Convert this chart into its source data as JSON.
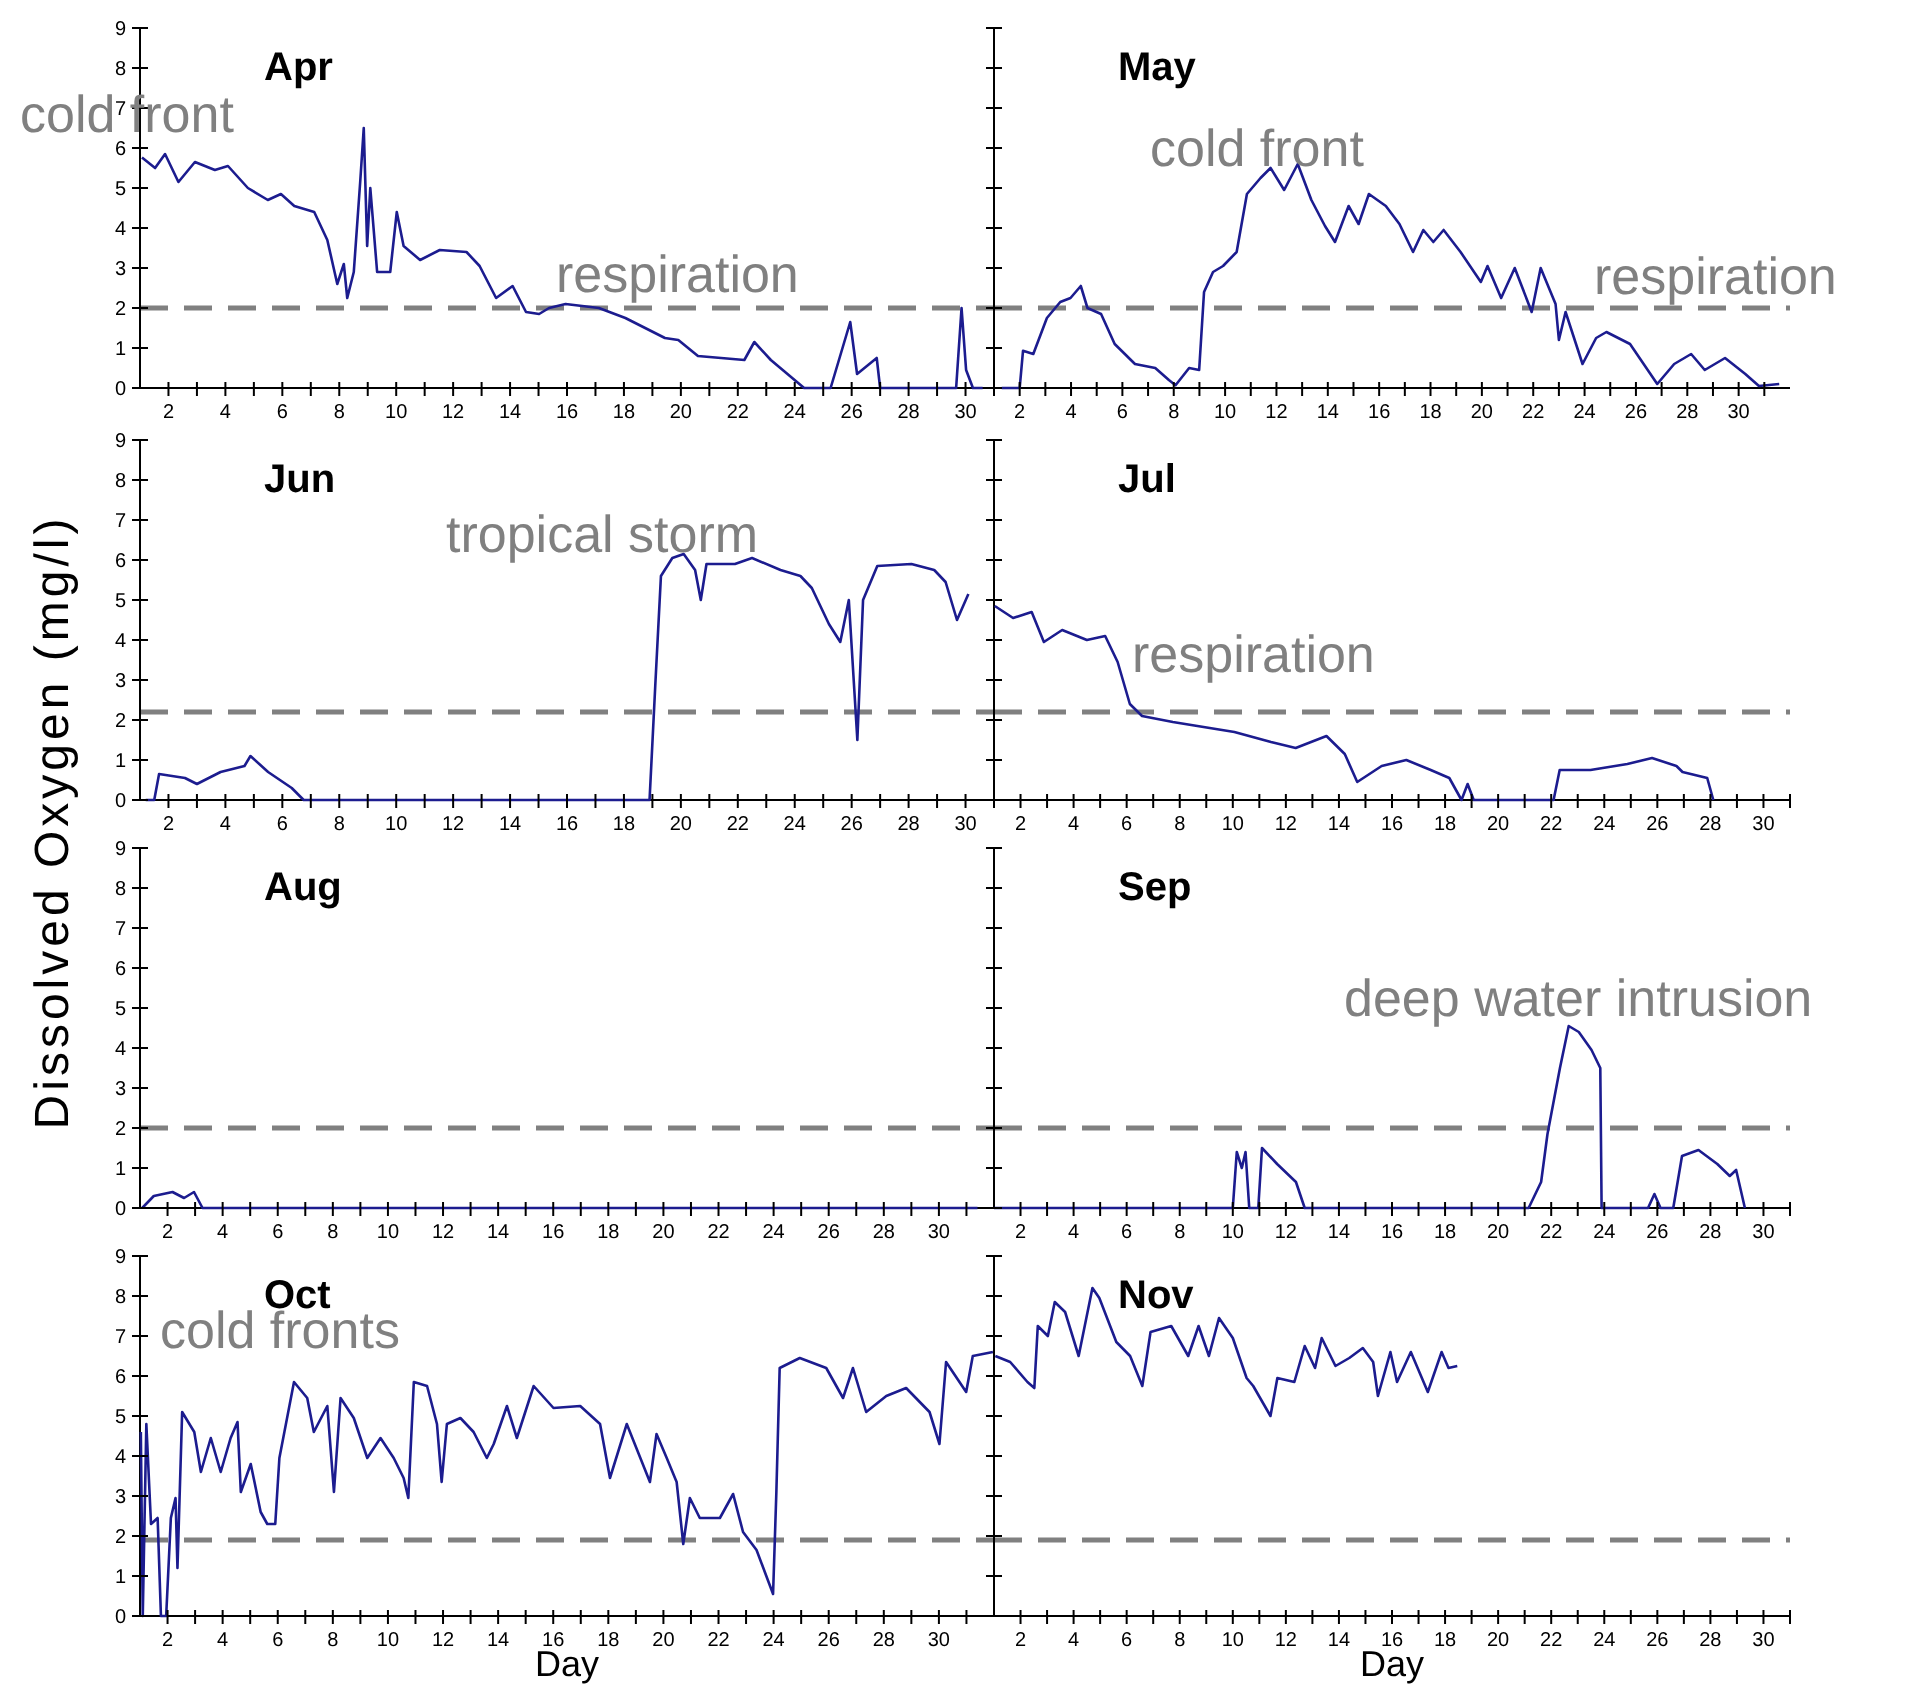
{
  "chart_data": [
    {
      "type": "line",
      "title": "Apr",
      "ylabel": "Dissolved Oxygen (mg/l)",
      "xlim": [
        1,
        31
      ],
      "ylim": [
        0,
        9
      ],
      "yticks": [
        0,
        1,
        2,
        3,
        4,
        5,
        6,
        7,
        8,
        9
      ],
      "xticks": [
        2,
        {
          "value": 3,
          "label": null
        },
        4,
        {
          "value": 5,
          "label": null
        },
        6,
        {
          "value": 7,
          "label": null
        },
        8,
        {
          "value": 9,
          "label": null
        },
        10,
        {
          "value": 11,
          "label": null
        },
        12,
        {
          "value": 13,
          "label": null
        },
        14,
        {
          "value": 15,
          "label": null
        },
        16,
        {
          "value": 17,
          "label": null
        },
        18,
        {
          "value": 19,
          "label": null
        },
        20,
        {
          "value": 21,
          "label": null
        },
        22,
        {
          "value": 23,
          "label": null
        },
        24,
        {
          "value": 25,
          "label": null
        },
        26,
        {
          "value": 27,
          "label": null
        },
        28,
        {
          "value": 29,
          "label": null
        },
        30,
        {
          "value": 31,
          "label": null
        }
      ],
      "ref_lines": [
        {
          "axis": "y",
          "value": 2,
          "color": "#808080",
          "line_style": "dashed"
        }
      ],
      "annotations": [
        "cold front",
        "respiration"
      ],
      "series": [
        {
          "color": "#1c1c8f",
          "x": [
            1.07,
            1.53,
            1.88,
            2.35,
            2.93,
            3.63,
            4.09,
            4.79,
            5.49,
            5.95,
            6.42,
            7.12,
            7.58,
            7.93,
            8.16,
            8.28,
            8.51,
            8.74,
            8.86,
            8.98,
            9.09,
            9.33,
            9.79,
            10.02,
            10.26,
            10.84,
            11.53,
            12.47,
            12.93,
            13.51,
            14.09,
            14.56,
            15.02,
            15.37,
            15.95,
            17.12,
            18.05,
            19.44,
            19.91,
            20.6,
            22.23,
            22.58,
            23.16,
            24.33,
            25.26,
            25.95,
            26.19,
            26.88,
            27.0,
            29.67,
            29.86,
            30.02,
            30.26,
            30.6
          ],
          "values": [
            5.76,
            5.5,
            5.85,
            5.15,
            5.65,
            5.45,
            5.55,
            5.0,
            4.7,
            4.85,
            4.55,
            4.4,
            3.7,
            2.6,
            3.1,
            2.25,
            2.9,
            5.2,
            6.5,
            3.55,
            5.0,
            2.9,
            2.9,
            4.4,
            3.55,
            3.2,
            3.45,
            3.4,
            3.05,
            2.25,
            2.55,
            1.9,
            1.85,
            2.0,
            2.1,
            2.0,
            1.75,
            1.25,
            1.2,
            0.8,
            0.7,
            1.15,
            0.7,
            0,
            0,
            1.65,
            0.35,
            0.75,
            0,
            0,
            2.0,
            0.45,
            0,
            0
          ]
        }
      ]
    },
    {
      "type": "line",
      "title": "May",
      "tick_labels": "x",
      "xlim": [
        1,
        32
      ],
      "ylim": [
        0,
        9
      ],
      "yticks": [
        0,
        1,
        2,
        3,
        4,
        5,
        6,
        7,
        8,
        9
      ],
      "xticks": [
        2,
        {
          "value": 3,
          "label": null
        },
        4,
        {
          "value": 5,
          "label": null
        },
        6,
        {
          "value": 7,
          "label": null
        },
        8,
        {
          "value": 9,
          "label": null
        },
        10,
        {
          "value": 11,
          "label": null
        },
        12,
        {
          "value": 13,
          "label": null
        },
        14,
        {
          "value": 15,
          "label": null
        },
        16,
        {
          "value": 17,
          "label": null
        },
        18,
        {
          "value": 19,
          "label": null
        },
        20,
        {
          "value": 21,
          "label": null
        },
        22,
        {
          "value": 23,
          "label": null
        },
        24,
        {
          "value": 25,
          "label": null
        },
        26,
        {
          "value": 27,
          "label": null
        },
        28,
        {
          "value": 29,
          "label": null
        },
        30,
        {
          "value": 31,
          "label": null
        }
      ],
      "ref_lines": [
        {
          "axis": "y",
          "value": 2,
          "color": "#808080",
          "line_style": "dashed"
        }
      ],
      "annotations": [
        "cold front",
        "respiration"
      ],
      "series": [
        {
          "color": "#1c1c8f",
          "x": [
            1.3,
            2.0,
            2.13,
            2.53,
            3.06,
            3.58,
            3.98,
            4.38,
            4.64,
            5.17,
            5.7,
            6.49,
            7.28,
            7.81,
            8.07,
            8.6,
            8.99,
            9.18,
            9.53,
            9.92,
            10.45,
            10.85,
            11.38,
            11.77,
            12.3,
            12.83,
            13.36,
            13.89,
            14.28,
            14.81,
            15.2,
            15.6,
            16.26,
            16.79,
            17.32,
            17.72,
            18.11,
            18.51,
            19.17,
            19.96,
            20.22,
            20.75,
            21.28,
            21.94,
            22.29,
            22.87,
            23.0,
            23.26,
            23.92,
            24.45,
            24.85,
            25.77,
            26.83,
            27.49,
            28.15,
            28.68,
            29.47,
            30.26,
            30.79,
            31.58
          ],
          "values": [
            0,
            0,
            0.93,
            0.85,
            1.75,
            2.15,
            2.25,
            2.55,
            2.0,
            1.85,
            1.1,
            0.6,
            0.5,
            0.2,
            0.07,
            0.5,
            0.45,
            2.4,
            2.9,
            3.05,
            3.4,
            4.85,
            5.25,
            5.5,
            4.95,
            5.6,
            4.7,
            4.05,
            3.65,
            4.55,
            4.1,
            4.85,
            4.55,
            4.1,
            3.4,
            3.95,
            3.65,
            3.95,
            3.4,
            2.65,
            3.05,
            2.25,
            3.0,
            1.9,
            3.0,
            2.1,
            1.2,
            1.9,
            0.6,
            1.25,
            1.4,
            1.1,
            0.1,
            0.6,
            0.85,
            0.45,
            0.75,
            0.35,
            0.05,
            0.1
          ]
        }
      ]
    },
    {
      "type": "line",
      "title": "Jun",
      "xlim": [
        1,
        31
      ],
      "ylim": [
        0,
        9
      ],
      "yticks": [
        0,
        1,
        2,
        3,
        4,
        5,
        6,
        7,
        8,
        9
      ],
      "xticks": [
        2,
        {
          "value": 3,
          "label": null
        },
        4,
        {
          "value": 5,
          "label": null
        },
        6,
        {
          "value": 7,
          "label": null
        },
        8,
        {
          "value": 9,
          "label": null
        },
        10,
        {
          "value": 11,
          "label": null
        },
        12,
        {
          "value": 13,
          "label": null
        },
        14,
        {
          "value": 15,
          "label": null
        },
        16,
        {
          "value": 17,
          "label": null
        },
        18,
        {
          "value": 19,
          "label": null
        },
        20,
        {
          "value": 21,
          "label": null
        },
        22,
        {
          "value": 23,
          "label": null
        },
        24,
        {
          "value": 25,
          "label": null
        },
        26,
        {
          "value": 27,
          "label": null
        },
        28,
        {
          "value": 29,
          "label": null
        },
        30,
        {
          "value": 31,
          "label": null
        }
      ],
      "ref_lines": [
        {
          "axis": "y",
          "value": 2.2,
          "color": "#808080",
          "line_style": "dashed"
        }
      ],
      "annotations": [
        "tropical storm"
      ],
      "series": [
        {
          "color": "#1c1c8f",
          "x": [
            1.2,
            1.5,
            1.67,
            2.58,
            3.0,
            3.83,
            4.67,
            4.88,
            5.5,
            6.33,
            6.75,
            18.9,
            19.1,
            19.3,
            19.7,
            20.1,
            20.5,
            20.7,
            20.9,
            21.9,
            22.5,
            23.5,
            24.2,
            24.6,
            25.2,
            25.6,
            25.9,
            26.2,
            26.4,
            26.9,
            28.1,
            28.9,
            29.3,
            29.7,
            30.1
          ],
          "values": [
            0,
            0,
            0.65,
            0.55,
            0.4,
            0.7,
            0.85,
            1.1,
            0.7,
            0.3,
            0,
            0,
            2.85,
            5.6,
            6.05,
            6.15,
            5.75,
            5.0,
            5.9,
            5.9,
            6.05,
            5.75,
            5.6,
            5.3,
            4.4,
            3.95,
            5.0,
            1.5,
            5.0,
            5.85,
            5.9,
            5.75,
            5.45,
            4.5,
            5.15
          ]
        }
      ]
    },
    {
      "type": "line",
      "title": "Jul",
      "tick_labels": "x",
      "xlim": [
        1,
        31
      ],
      "ylim": [
        0,
        9
      ],
      "yticks": [
        0,
        1,
        2,
        3,
        4,
        5,
        6,
        7,
        8,
        9
      ],
      "xticks": [
        2,
        {
          "value": 3,
          "label": null
        },
        4,
        {
          "value": 5,
          "label": null
        },
        6,
        {
          "value": 7,
          "label": null
        },
        8,
        {
          "value": 9,
          "label": null
        },
        10,
        {
          "value": 11,
          "label": null
        },
        12,
        {
          "value": 13,
          "label": null
        },
        14,
        {
          "value": 15,
          "label": null
        },
        16,
        {
          "value": 17,
          "label": null
        },
        18,
        {
          "value": 19,
          "label": null
        },
        20,
        {
          "value": 21,
          "label": null
        },
        22,
        {
          "value": 23,
          "label": null
        },
        24,
        {
          "value": 25,
          "label": null
        },
        26,
        {
          "value": 27,
          "label": null
        },
        28,
        {
          "value": 29,
          "label": null
        },
        30,
        {
          "value": 31,
          "label": null
        }
      ],
      "ref_lines": [
        {
          "axis": "y",
          "value": 2.2,
          "color": "#808080",
          "line_style": "dashed"
        }
      ],
      "annotations": [
        "respiration"
      ],
      "series": [
        {
          "color": "#1c1c8f",
          "x": [
            1.03,
            1.72,
            2.42,
            2.88,
            3.57,
            4.5,
            5.19,
            5.66,
            6.12,
            6.58,
            7.74,
            9.13,
            10.06,
            11.44,
            12.37,
            13.53,
            14.22,
            14.69,
            15.61,
            16.54,
            17.46,
            18.16,
            18.62,
            18.85,
            19.08,
            22.09,
            22.32,
            23.48,
            24.87,
            25.8,
            26.72,
            26.95,
            27.88,
            28.11
          ],
          "values": [
            4.85,
            4.55,
            4.7,
            3.95,
            4.25,
            4.0,
            4.1,
            3.45,
            2.4,
            2.1,
            1.95,
            1.8,
            1.7,
            1.45,
            1.3,
            1.6,
            1.15,
            0.45,
            0.85,
            1.0,
            0.75,
            0.55,
            0,
            0.4,
            0,
            0,
            0.75,
            0.75,
            0.9,
            1.05,
            0.85,
            0.7,
            0.55,
            0
          ]
        }
      ]
    },
    {
      "type": "line",
      "title": "Aug",
      "xlim": [
        1,
        32
      ],
      "ylim": [
        0,
        9
      ],
      "yticks": [
        0,
        1,
        2,
        3,
        4,
        5,
        6,
        7,
        8,
        9
      ],
      "xticks": [
        2,
        {
          "value": 3,
          "label": null
        },
        4,
        {
          "value": 5,
          "label": null
        },
        6,
        {
          "value": 7,
          "label": null
        },
        8,
        {
          "value": 9,
          "label": null
        },
        10,
        {
          "value": 11,
          "label": null
        },
        12,
        {
          "value": 13,
          "label": null
        },
        14,
        {
          "value": 15,
          "label": null
        },
        16,
        {
          "value": 17,
          "label": null
        },
        18,
        {
          "value": 19,
          "label": null
        },
        20,
        {
          "value": 21,
          "label": null
        },
        22,
        {
          "value": 23,
          "label": null
        },
        24,
        {
          "value": 25,
          "label": null
        },
        26,
        {
          "value": 27,
          "label": null
        },
        28,
        {
          "value": 29,
          "label": null
        },
        30,
        {
          "value": 31,
          "label": null
        }
      ],
      "ref_lines": [
        {
          "axis": "y",
          "value": 2,
          "color": "#808080",
          "line_style": "dashed"
        }
      ],
      "series": [
        {
          "color": "#1c1c8f",
          "x": [
            1.08,
            1.5,
            2.18,
            2.6,
            2.96,
            3.27,
            31.4
          ],
          "values": [
            0,
            0.3,
            0.4,
            0.25,
            0.4,
            0,
            0
          ]
        }
      ]
    },
    {
      "type": "line",
      "title": "Sep",
      "tick_labels": "x",
      "xlim": [
        1,
        31
      ],
      "ylim": [
        0,
        9
      ],
      "yticks": [
        0,
        1,
        2,
        3,
        4,
        5,
        6,
        7,
        8,
        9
      ],
      "xticks": [
        2,
        {
          "value": 3,
          "label": null
        },
        4,
        {
          "value": 5,
          "label": null
        },
        6,
        {
          "value": 7,
          "label": null
        },
        8,
        {
          "value": 9,
          "label": null
        },
        10,
        {
          "value": 11,
          "label": null
        },
        12,
        {
          "value": 13,
          "label": null
        },
        14,
        {
          "value": 15,
          "label": null
        },
        16,
        {
          "value": 17,
          "label": null
        },
        18,
        {
          "value": 19,
          "label": null
        },
        20,
        {
          "value": 21,
          "label": null
        },
        22,
        {
          "value": 23,
          "label": null
        },
        24,
        {
          "value": 25,
          "label": null
        },
        26,
        {
          "value": 27,
          "label": null
        },
        28,
        {
          "value": 29,
          "label": null
        },
        30,
        {
          "value": 31,
          "label": null
        }
      ],
      "ref_lines": [
        {
          "axis": "y",
          "value": 2,
          "color": "#808080",
          "line_style": "dashed"
        }
      ],
      "annotations": [
        "deep water intrusion"
      ],
      "series": [
        {
          "color": "#1c1c8f",
          "x": [
            1.0,
            10.0,
            10.15,
            10.34,
            10.48,
            10.62,
            10.96,
            11.1,
            11.67,
            12.38,
            12.71,
            21.15,
            21.62,
            21.86,
            22.33,
            22.66,
            23.04,
            23.52,
            23.85,
            23.9,
            25.65,
            25.89,
            26.12,
            26.6,
            26.93,
            27.55,
            28.26,
            28.73,
            28.97,
            29.3
          ],
          "values": [
            0,
            0,
            1.4,
            1.0,
            1.4,
            0,
            0,
            1.5,
            1.1,
            0.65,
            0,
            0,
            0.65,
            1.85,
            3.5,
            4.55,
            4.4,
            3.95,
            3.5,
            0,
            0,
            0.35,
            0,
            0,
            1.3,
            1.45,
            1.1,
            0.8,
            0.95,
            0
          ]
        }
      ]
    },
    {
      "type": "line",
      "title": "Oct",
      "xlabel": "Day",
      "xlim": [
        1,
        32
      ],
      "ylim": [
        0,
        9
      ],
      "yticks": [
        0,
        1,
        2,
        3,
        4,
        5,
        6,
        7,
        8,
        9
      ],
      "xticks": [
        2,
        {
          "value": 3,
          "label": null
        },
        4,
        {
          "value": 5,
          "label": null
        },
        6,
        {
          "value": 7,
          "label": null
        },
        8,
        {
          "value": 9,
          "label": null
        },
        10,
        {
          "value": 11,
          "label": null
        },
        12,
        {
          "value": 13,
          "label": null
        },
        14,
        {
          "value": 15,
          "label": null
        },
        16,
        {
          "value": 17,
          "label": null
        },
        18,
        {
          "value": 19,
          "label": null
        },
        20,
        {
          "value": 21,
          "label": null
        },
        22,
        {
          "value": 23,
          "label": null
        },
        24,
        {
          "value": 25,
          "label": null
        },
        26,
        {
          "value": 27,
          "label": null
        },
        28,
        {
          "value": 29,
          "label": null
        },
        30,
        {
          "value": 31,
          "label": null
        }
      ],
      "ref_lines": [
        {
          "axis": "y",
          "value": 1.9,
          "color": "#808080",
          "line_style": "dashed"
        }
      ],
      "annotations": [
        "cold fronts"
      ],
      "series": [
        {
          "color": "#1c1c8f",
          "x": [
            1.03,
            1.1,
            1.23,
            1.4,
            1.64,
            1.76,
            1.95,
            2.12,
            2.29,
            2.36,
            2.53,
            2.97,
            3.21,
            3.57,
            3.93,
            4.29,
            4.54,
            4.66,
            5.02,
            5.38,
            5.62,
            5.91,
            6.06,
            6.59,
            7.07,
            7.31,
            7.8,
            8.04,
            8.28,
            8.76,
            9.25,
            9.73,
            10.21,
            10.57,
            10.74,
            10.94,
            11.42,
            11.78,
            11.95,
            12.14,
            12.63,
            13.11,
            13.59,
            13.84,
            14.32,
            14.68,
            15.29,
            16.01,
            16.98,
            17.7,
            18.06,
            18.67,
            19.51,
            19.75,
            20.12,
            20.48,
            20.72,
            20.96,
            21.32,
            22.05,
            22.53,
            22.89,
            23.38,
            23.98,
            24.1,
            24.22,
            24.95,
            25.91,
            26.52,
            26.88,
            27.36,
            28.09,
            28.81,
            29.66,
            30.02,
            30.26,
            30.99,
            31.23,
            31.96
          ],
          "values": [
            4.6,
            0,
            4.8,
            2.3,
            2.45,
            0,
            0,
            2.45,
            2.95,
            1.2,
            5.1,
            4.6,
            3.6,
            4.45,
            3.6,
            4.45,
            4.85,
            3.1,
            3.8,
            2.6,
            2.3,
            2.3,
            3.95,
            5.85,
            5.45,
            4.6,
            5.25,
            3.1,
            5.45,
            4.95,
            3.95,
            4.45,
            3.95,
            3.45,
            2.95,
            5.85,
            5.75,
            4.8,
            3.35,
            4.8,
            4.95,
            4.6,
            3.95,
            4.3,
            5.25,
            4.45,
            5.75,
            5.2,
            5.25,
            4.8,
            3.45,
            4.8,
            3.35,
            4.55,
            3.95,
            3.35,
            1.8,
            2.95,
            2.45,
            2.45,
            3.05,
            2.1,
            1.65,
            0.55,
            3.1,
            6.2,
            6.45,
            6.2,
            5.45,
            6.2,
            5.1,
            5.5,
            5.7,
            5.1,
            4.3,
            6.35,
            5.6,
            6.5,
            6.6
          ]
        }
      ]
    },
    {
      "type": "line",
      "title": "Nov",
      "xlabel": "Day",
      "tick_labels": "x",
      "xlim": [
        1,
        31
      ],
      "ylim": [
        0,
        9
      ],
      "yticks": [
        0,
        1,
        2,
        3,
        4,
        5,
        6,
        7,
        8,
        9
      ],
      "xticks": [
        2,
        {
          "value": 3,
          "label": null
        },
        4,
        {
          "value": 5,
          "label": null
        },
        6,
        {
          "value": 7,
          "label": null
        },
        8,
        {
          "value": 9,
          "label": null
        },
        10,
        {
          "value": 11,
          "label": null
        },
        12,
        {
          "value": 13,
          "label": null
        },
        14,
        {
          "value": 15,
          "label": null
        },
        16,
        {
          "value": 17,
          "label": null
        },
        18,
        {
          "value": 19,
          "label": null
        },
        20,
        {
          "value": 21,
          "label": null
        },
        22,
        {
          "value": 23,
          "label": null
        },
        24,
        {
          "value": 25,
          "label": null
        },
        26,
        {
          "value": 27,
          "label": null
        },
        28,
        {
          "value": 29,
          "label": null
        },
        30,
        {
          "value": 31,
          "label": null
        }
      ],
      "ref_lines": [
        {
          "axis": "y",
          "value": 1.9,
          "color": "#808080",
          "line_style": "dashed"
        }
      ],
      "series": [
        {
          "color": "#1c1c8f",
          "x": [
            1.05,
            1.61,
            2.26,
            2.52,
            2.65,
            3.03,
            3.29,
            3.68,
            4.19,
            4.71,
            4.97,
            5.61,
            6.13,
            6.59,
            6.9,
            7.68,
            8.32,
            8.71,
            9.1,
            9.48,
            10.0,
            10.52,
            10.77,
            11.42,
            11.68,
            12.32,
            12.71,
            13.1,
            13.35,
            13.87,
            14.39,
            14.9,
            15.29,
            15.47,
            15.94,
            16.19,
            16.71,
            17.35,
            17.87,
            18.13,
            18.46
          ],
          "values": [
            6.5,
            6.35,
            5.85,
            5.7,
            7.25,
            7.0,
            7.85,
            7.6,
            6.5,
            8.2,
            7.95,
            6.85,
            6.5,
            5.75,
            7.1,
            7.25,
            6.5,
            7.25,
            6.5,
            7.45,
            6.95,
            5.95,
            5.75,
            5.0,
            5.95,
            5.85,
            6.75,
            6.2,
            6.95,
            6.25,
            6.45,
            6.7,
            6.35,
            5.5,
            6.6,
            5.85,
            6.6,
            5.6,
            6.6,
            6.2,
            6.25
          ]
        }
      ]
    }
  ]
}
